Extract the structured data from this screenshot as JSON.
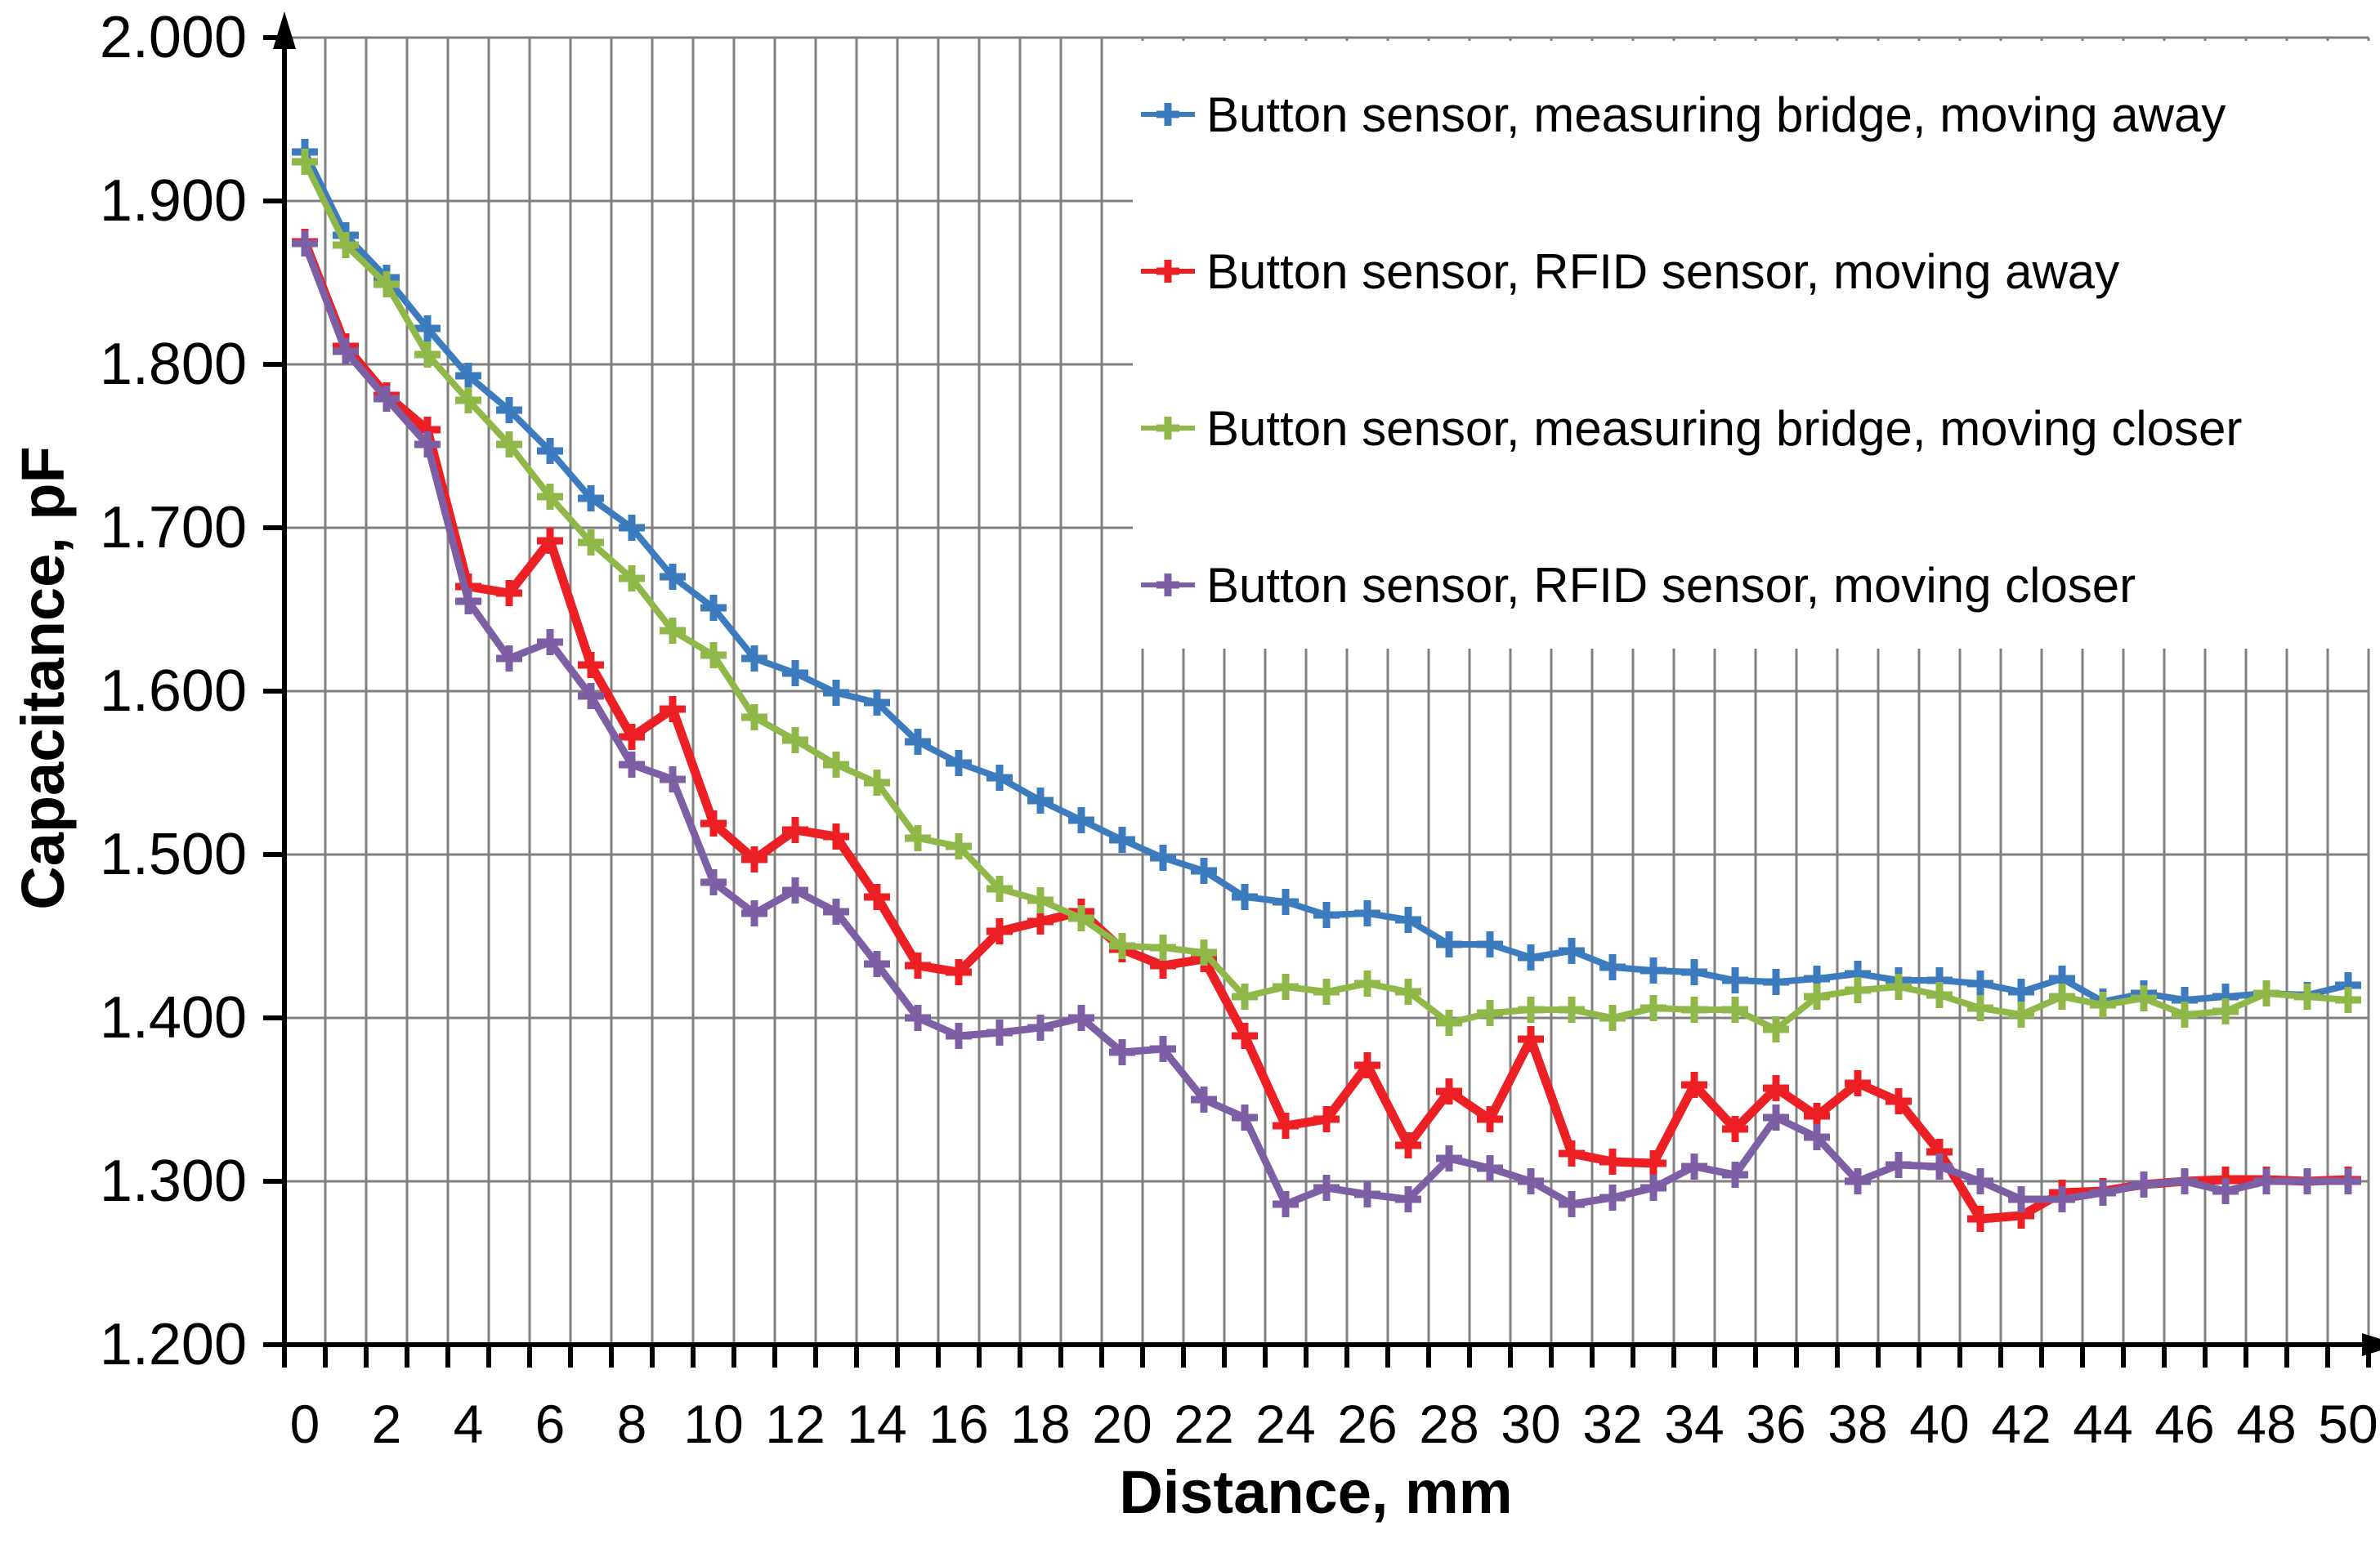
{
  "chart_data": {
    "type": "line",
    "title": "",
    "xlabel": "Distance, mm",
    "ylabel": "Capacitance, pF",
    "xlim": [
      -0.5,
      50.5
    ],
    "ylim": [
      1.2,
      2.0
    ],
    "y_tick_step": 0.1,
    "y_tick_labels": [
      "2.000",
      "1.900",
      "1.800",
      "1.700",
      "1.600",
      "1.500",
      "1.400",
      "1.300",
      "1.200"
    ],
    "x_tick_labels": [
      "0",
      "2",
      "4",
      "6",
      "8",
      "10",
      "12",
      "14",
      "16",
      "18",
      "20",
      "22",
      "24",
      "26",
      "28",
      "30",
      "32",
      "34",
      "36",
      "38",
      "40",
      "42",
      "44",
      "46",
      "48",
      "50"
    ],
    "x_label_step": 2,
    "minor_vertical_grid_every_mm": 1,
    "grid_on": true,
    "grid_color": "#808080",
    "axis_color": "#000000",
    "background_color": "#ffffff",
    "legend_position": "top-right",
    "marker": "plus",
    "x": [
      0,
      1,
      2,
      3,
      4,
      5,
      6,
      7,
      8,
      9,
      10,
      11,
      12,
      13,
      14,
      15,
      16,
      17,
      18,
      19,
      20,
      21,
      22,
      23,
      24,
      25,
      26,
      27,
      28,
      29,
      30,
      31,
      32,
      33,
      34,
      35,
      36,
      37,
      38,
      39,
      40,
      41,
      42,
      43,
      44,
      45,
      46,
      47,
      48,
      49,
      50
    ],
    "series": [
      {
        "name": "Button sensor, measuring bridge, moving away",
        "color": "#3B7BBE",
        "line_width": 8,
        "values": [
          1.93,
          1.879,
          1.853,
          1.822,
          1.793,
          1.772,
          1.747,
          1.718,
          1.7,
          1.67,
          1.651,
          1.62,
          1.611,
          1.599,
          1.593,
          1.569,
          1.556,
          1.547,
          1.533,
          1.521,
          1.509,
          1.498,
          1.49,
          1.474,
          1.471,
          1.463,
          1.464,
          1.46,
          1.445,
          1.445,
          1.437,
          1.441,
          1.431,
          1.429,
          1.428,
          1.423,
          1.422,
          1.424,
          1.427,
          1.423,
          1.423,
          1.421,
          1.416,
          1.424,
          1.41,
          1.415,
          1.411,
          1.413,
          1.415,
          1.414,
          1.42
        ]
      },
      {
        "name": "Button sensor, RFID sensor, moving away",
        "color": "#EC2024",
        "line_width": 11,
        "values": [
          1.875,
          1.811,
          1.781,
          1.76,
          1.664,
          1.66,
          1.692,
          1.616,
          1.572,
          1.589,
          1.519,
          1.497,
          1.515,
          1.511,
          1.474,
          1.432,
          1.428,
          1.453,
          1.459,
          1.465,
          1.442,
          1.432,
          1.436,
          1.389,
          1.334,
          1.338,
          1.371,
          1.322,
          1.355,
          1.338,
          1.387,
          1.317,
          1.312,
          1.311,
          1.359,
          1.332,
          1.357,
          1.34,
          1.36,
          1.349,
          1.318,
          1.277,
          1.279,
          1.293,
          1.294,
          1.298,
          1.3,
          1.301,
          1.301,
          1.3,
          1.301
        ]
      },
      {
        "name": "Button sensor, measuring bridge, moving closer",
        "color": "#8FB848",
        "line_width": 8,
        "values": [
          1.924,
          1.873,
          1.849,
          1.806,
          1.778,
          1.751,
          1.719,
          1.691,
          1.669,
          1.637,
          1.622,
          1.584,
          1.57,
          1.555,
          1.544,
          1.51,
          1.505,
          1.479,
          1.472,
          1.461,
          1.444,
          1.443,
          1.44,
          1.413,
          1.419,
          1.416,
          1.421,
          1.416,
          1.397,
          1.403,
          1.405,
          1.405,
          1.4,
          1.406,
          1.405,
          1.405,
          1.393,
          1.413,
          1.417,
          1.419,
          1.414,
          1.406,
          1.402,
          1.413,
          1.408,
          1.412,
          1.402,
          1.404,
          1.415,
          1.413,
          1.411
        ]
      },
      {
        "name": "Button sensor, RFID sensor, moving closer",
        "color": "#7C5FA5",
        "line_width": 9,
        "values": [
          1.874,
          1.808,
          1.779,
          1.751,
          1.655,
          1.62,
          1.63,
          1.597,
          1.555,
          1.546,
          1.483,
          1.464,
          1.478,
          1.465,
          1.433,
          1.4,
          1.389,
          1.391,
          1.394,
          1.4,
          1.379,
          1.381,
          1.35,
          1.339,
          1.286,
          1.296,
          1.292,
          1.289,
          1.314,
          1.308,
          1.3,
          1.286,
          1.29,
          1.296,
          1.309,
          1.304,
          1.339,
          1.327,
          1.3,
          1.31,
          1.309,
          1.3,
          1.289,
          1.289,
          1.293,
          1.298,
          1.3,
          1.294,
          1.3,
          1.3,
          1.3
        ]
      }
    ]
  },
  "layout_note_visible_text_only": true
}
